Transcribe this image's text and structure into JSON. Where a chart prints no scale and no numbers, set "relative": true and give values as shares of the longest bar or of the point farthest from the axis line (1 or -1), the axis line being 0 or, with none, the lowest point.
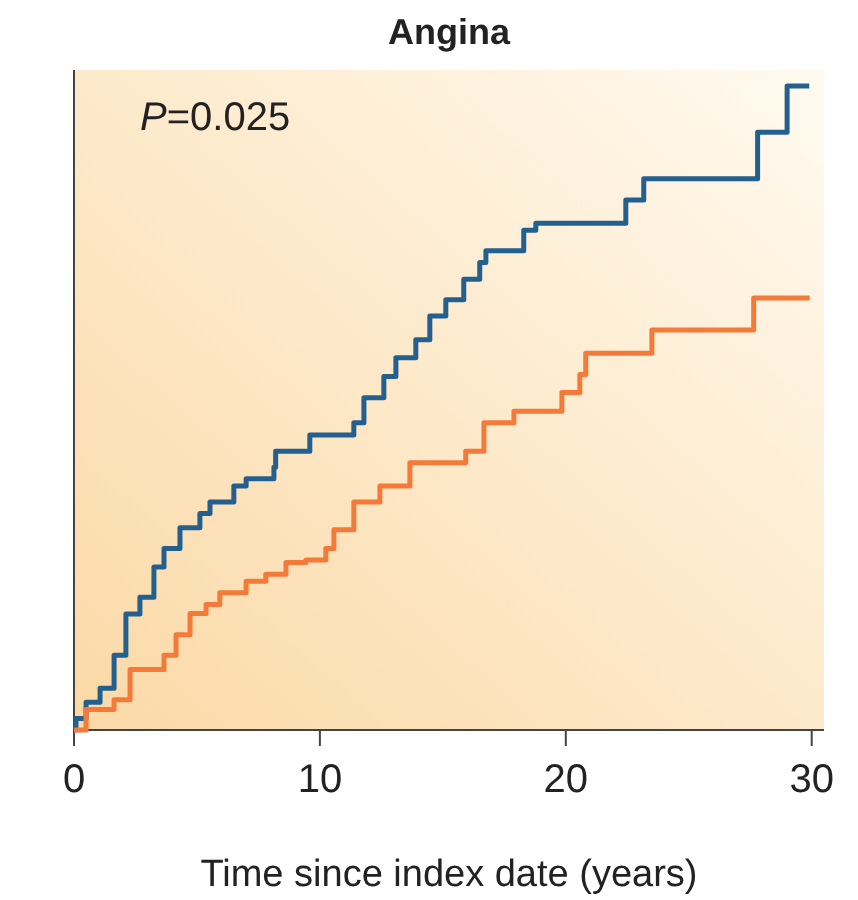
{
  "chart_data": {
    "type": "step",
    "title": "Angina",
    "xlabel": "Time since index date (years)",
    "annotations": [
      "P=0.025"
    ],
    "relative": true,
    "xlim": [
      0,
      30.5
    ],
    "xticks": [
      0,
      10,
      20,
      30
    ],
    "tick_labels": "x",
    "series": [
      {
        "color": "#24608f",
        "x": [
          0,
          0.08,
          0.49,
          1.06,
          1.63,
          2.11,
          2.68,
          3.25,
          3.66,
          4.31,
          5.12,
          5.53,
          6.5,
          7.0,
          8.13,
          8.2,
          9.59,
          11.38,
          11.79,
          12.6,
          13.09,
          13.9,
          14.47,
          15.12,
          15.85,
          16.5,
          16.75,
          18.29,
          18.78,
          22.44,
          23.17,
          27.8,
          29.0,
          29.9
        ],
        "values": [
          0,
          0.018,
          0.043,
          0.065,
          0.116,
          0.18,
          0.206,
          0.253,
          0.282,
          0.314,
          0.336,
          0.354,
          0.379,
          0.39,
          0.408,
          0.433,
          0.458,
          0.477,
          0.516,
          0.549,
          0.578,
          0.606,
          0.643,
          0.668,
          0.7,
          0.726,
          0.744,
          0.776,
          0.787,
          0.823,
          0.856,
          0.928,
          1,
          1
        ]
      },
      {
        "color": "#f47a3a",
        "x": [
          0,
          0.49,
          1.63,
          2.28,
          3.66,
          4.15,
          4.72,
          5.37,
          5.93,
          7.0,
          7.8,
          8.62,
          9.43,
          10.24,
          10.57,
          11.38,
          12.44,
          13.66,
          15.93,
          16.67,
          17.89,
          19.84,
          20.57,
          20.81,
          23.5,
          27.64,
          29.92
        ],
        "values": [
          0,
          0.032,
          0.047,
          0.094,
          0.116,
          0.148,
          0.181,
          0.195,
          0.213,
          0.231,
          0.242,
          0.26,
          0.264,
          0.282,
          0.311,
          0.354,
          0.379,
          0.415,
          0.433,
          0.477,
          0.495,
          0.524,
          0.552,
          0.585,
          0.621,
          0.671,
          0.671
        ]
      }
    ]
  }
}
